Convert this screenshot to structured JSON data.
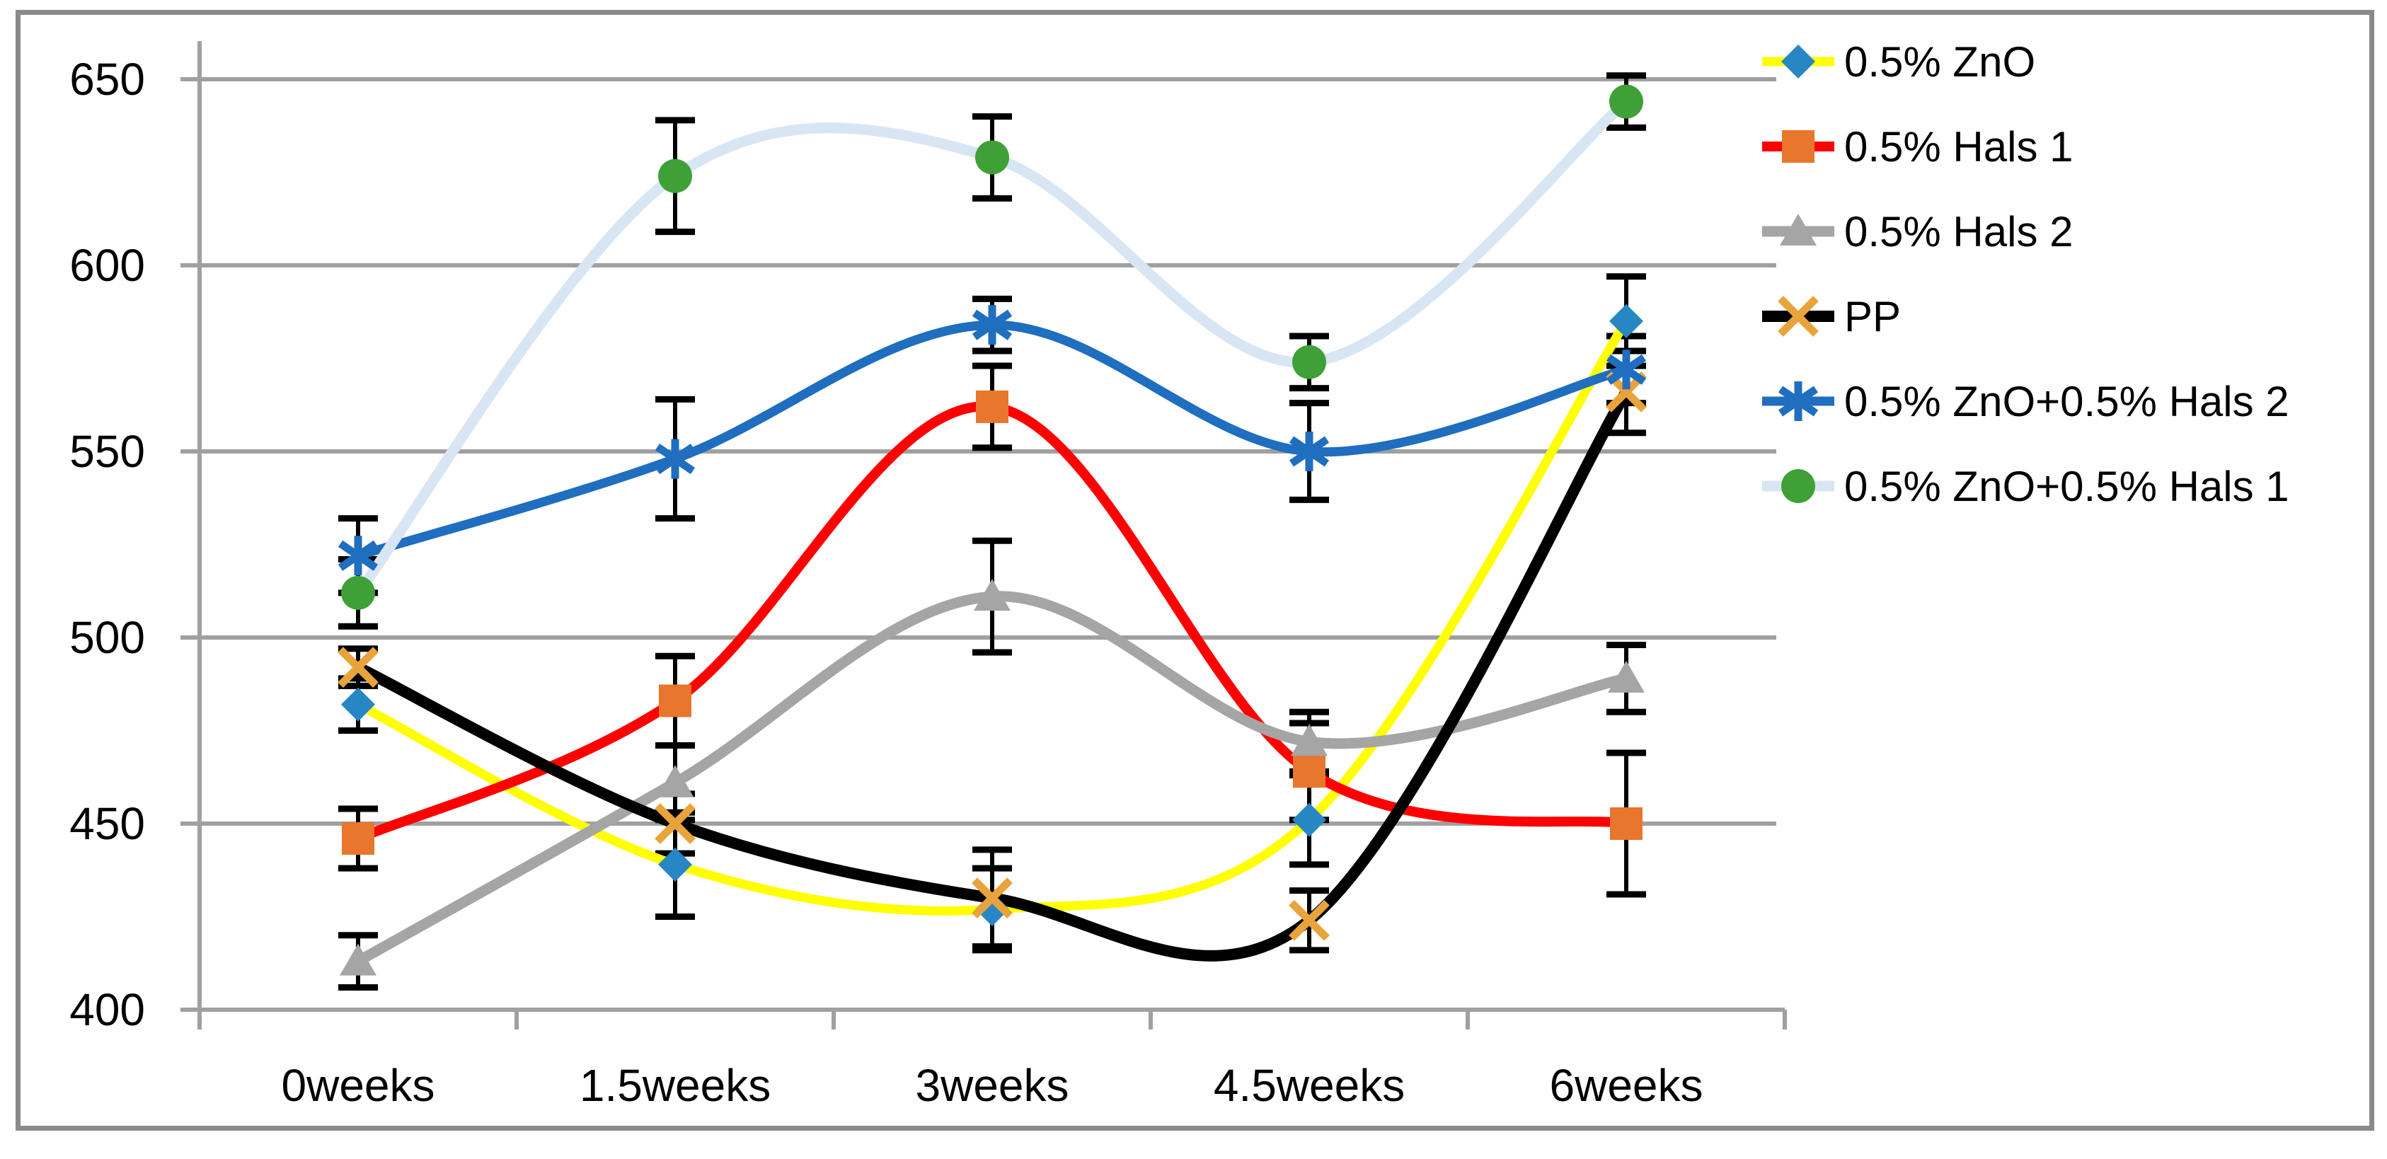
{
  "chart_data": {
    "type": "line",
    "title": "",
    "xlabel": "",
    "ylabel": "",
    "categories": [
      "0weeks",
      "1.5weeks",
      "3weeks",
      "4.5weeks",
      "6weeks"
    ],
    "series": [
      {
        "name": "0.5% ZnO",
        "line_color": "#FFFF00",
        "marker": "diamond",
        "marker_color": "#2787C4",
        "values": [
          482,
          439,
          427,
          451,
          585
        ],
        "errors": [
          7,
          14,
          11,
          12,
          12
        ]
      },
      {
        "name": "0.5% Hals 1",
        "line_color": "#FE0000",
        "marker": "square",
        "marker_color": "#E8762C",
        "values": [
          446,
          483,
          562,
          464,
          450
        ],
        "errors": [
          8,
          12,
          11,
          13,
          19
        ]
      },
      {
        "name": "0.5% Hals 2",
        "line_color": "#A5A5A5",
        "marker": "triangle",
        "marker_color": "#A5A5A5",
        "values": [
          413,
          461,
          511,
          472,
          489
        ],
        "errors": [
          7,
          10,
          15,
          8,
          9
        ]
      },
      {
        "name": "PP",
        "line_color": "#000000",
        "marker": "x",
        "marker_color": "#E9A33B",
        "values": [
          492,
          450,
          430,
          424,
          566
        ],
        "errors": [
          5,
          8,
          13,
          8,
          11
        ]
      },
      {
        "name": "0.5% ZnO+0.5% Hals 2",
        "line_color": "#1F6EBF",
        "marker": "asterisk",
        "marker_color": "#1F6EBF",
        "values": [
          522,
          548,
          584,
          550,
          572
        ],
        "errors": [
          10,
          16,
          7,
          13,
          9
        ]
      },
      {
        "name": "0.5% ZnO+0.5% Hals 1",
        "line_color": "#D8E6F4",
        "marker": "circle",
        "marker_color": "#3FA037",
        "values": [
          512,
          624,
          629,
          574,
          644
        ],
        "errors": [
          9,
          15,
          11,
          7,
          7
        ]
      }
    ],
    "y_ticks": [
      "650",
      "600",
      "550",
      "500",
      "450",
      "400"
    ],
    "y_tick_values": [
      650,
      600,
      550,
      500,
      450,
      400
    ],
    "ylim": [
      395,
      660
    ],
    "grid": true,
    "smooth_lines": true,
    "error_bars": true,
    "legend_position": "right",
    "axis_color": "#A0A0A0",
    "grid_color": "#A0A0A0",
    "frame_color": "#8A8A8A",
    "text_color": "#000000"
  }
}
